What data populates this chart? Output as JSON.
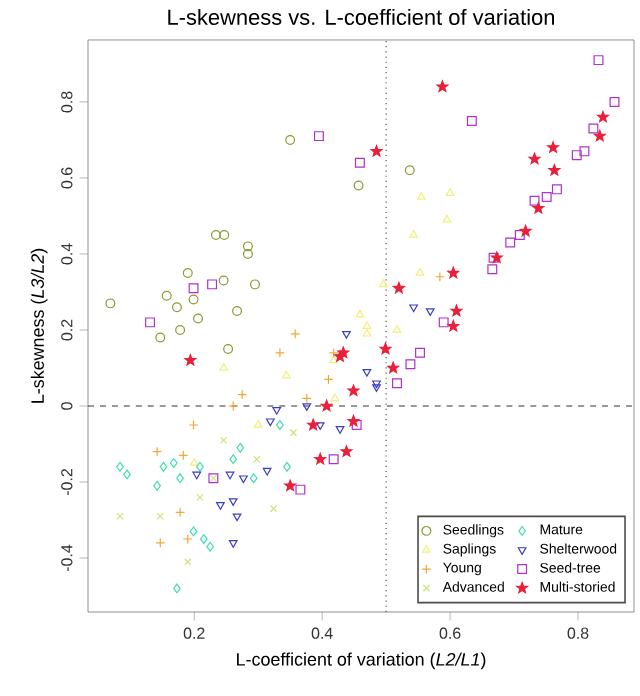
{
  "chart_data": {
    "type": "scatter",
    "title": "L-skewness vs. L-coefficient of variation",
    "xlabel": "L-coefficient of variation (*L2/L1*)",
    "ylabel": "L-skewness (*L3/L2*)",
    "xlim": [
      0.034,
      0.8875
    ],
    "ylim": [
      -0.542,
      0.963
    ],
    "xticks": [
      0.2,
      0.4,
      0.6,
      0.8
    ],
    "yticks": [
      -0.4,
      -0.2,
      0,
      0.2,
      0.4,
      0.6,
      0.8
    ],
    "grid": false,
    "legend": "bottom right",
    "ref_lines": [
      {
        "axis": "x",
        "value": 0.5,
        "line_style": "dotted",
        "color": "#555555"
      },
      {
        "axis": "y",
        "value": 0,
        "line_style": "dashed",
        "color": "#333333"
      }
    ],
    "series": [
      {
        "name": "Seedlings",
        "color": "#8c9a30",
        "marker": "circle",
        "x": [
          0.234,
          0.247,
          0.284,
          0.284,
          0.069,
          0.19,
          0.157,
          0.173,
          0.199,
          0.206,
          0.147,
          0.178,
          0.246,
          0.295,
          0.267,
          0.253,
          0.35,
          0.457,
          0.537
        ],
        "values": [
          0.45,
          0.45,
          0.42,
          0.4,
          0.27,
          0.35,
          0.29,
          0.26,
          0.28,
          0.23,
          0.18,
          0.2,
          0.33,
          0.32,
          0.25,
          0.15,
          0.7,
          0.58,
          0.62
        ]
      },
      {
        "name": "Saplings",
        "color": "#f0f07a",
        "marker": "triangle",
        "x": [
          0.555,
          0.6,
          0.543,
          0.595,
          0.553,
          0.496,
          0.459,
          0.47,
          0.517,
          0.418,
          0.47,
          0.344,
          0.246,
          0.2,
          0.3,
          0.42
        ],
        "values": [
          0.55,
          0.56,
          0.45,
          0.49,
          0.35,
          0.32,
          0.24,
          0.21,
          0.2,
          0.12,
          0.19,
          0.08,
          0.1,
          -0.15,
          -0.05,
          0.02
        ]
      },
      {
        "name": "Young",
        "color": "#f0a838",
        "marker": "plus",
        "x": [
          0.358,
          0.334,
          0.275,
          0.199,
          0.41,
          0.376,
          0.142,
          0.183,
          0.147,
          0.19,
          0.178,
          0.261,
          0.584,
          0.418
        ],
        "values": [
          0.19,
          0.14,
          0.03,
          -0.05,
          0.07,
          0.02,
          -0.12,
          -0.13,
          -0.36,
          -0.35,
          -0.28,
          0.0,
          0.34,
          0.14
        ]
      },
      {
        "name": "Advanced",
        "color": "#c8e67a",
        "marker": "cross",
        "x": [
          0.084,
          0.147,
          0.19,
          0.209,
          0.324,
          0.298,
          0.246,
          0.355,
          0.23
        ],
        "values": [
          -0.29,
          -0.29,
          -0.41,
          -0.24,
          -0.27,
          -0.14,
          -0.09,
          -0.07,
          -0.19
        ]
      },
      {
        "name": "Mature",
        "color": "#40deb0",
        "marker": "diamond",
        "x": [
          0.084,
          0.095,
          0.142,
          0.152,
          0.168,
          0.178,
          0.199,
          0.215,
          0.225,
          0.173,
          0.272,
          0.293,
          0.345,
          0.334,
          0.209,
          0.261
        ],
        "values": [
          -0.16,
          -0.18,
          -0.21,
          -0.16,
          -0.15,
          -0.19,
          -0.33,
          -0.35,
          -0.37,
          -0.48,
          -0.11,
          -0.19,
          -0.16,
          -0.05,
          -0.16,
          -0.14
        ]
      },
      {
        "name": "Shelterwood",
        "color": "#3c3cc8",
        "marker": "triangle_down",
        "x": [
          0.329,
          0.319,
          0.376,
          0.204,
          0.256,
          0.277,
          0.314,
          0.261,
          0.241,
          0.267,
          0.261,
          0.397,
          0.428,
          0.438,
          0.47,
          0.485,
          0.543,
          0.569,
          0.485
        ],
        "values": [
          -0.01,
          -0.04,
          0.0,
          -0.18,
          -0.18,
          -0.19,
          -0.17,
          -0.25,
          -0.26,
          -0.29,
          -0.36,
          -0.05,
          -0.06,
          0.19,
          0.09,
          0.06,
          0.26,
          0.25,
          0.05
        ]
      },
      {
        "name": "Seed-tree",
        "color": "#b030d0",
        "marker": "square",
        "x": [
          0.395,
          0.459,
          0.634,
          0.832,
          0.857,
          0.824,
          0.798,
          0.81,
          0.732,
          0.751,
          0.767,
          0.709,
          0.694,
          0.668,
          0.666,
          0.59,
          0.553,
          0.538,
          0.517,
          0.199,
          0.228,
          0.131,
          0.454,
          0.23,
          0.366,
          0.418
        ],
        "values": [
          0.71,
          0.64,
          0.75,
          0.91,
          0.8,
          0.73,
          0.66,
          0.67,
          0.54,
          0.55,
          0.57,
          0.45,
          0.43,
          0.39,
          0.36,
          0.22,
          0.14,
          0.11,
          0.06,
          0.31,
          0.32,
          0.22,
          -0.05,
          -0.19,
          -0.22,
          -0.14
        ]
      },
      {
        "name": "Multi-storied",
        "color": "#e8203a",
        "marker": "star",
        "x": [
          0.588,
          0.485,
          0.839,
          0.834,
          0.761,
          0.732,
          0.763,
          0.738,
          0.718,
          0.673,
          0.605,
          0.52,
          0.61,
          0.605,
          0.499,
          0.511,
          0.433,
          0.449,
          0.449,
          0.194,
          0.428,
          0.386,
          0.438,
          0.35,
          0.397,
          0.407
        ],
        "values": [
          0.84,
          0.67,
          0.76,
          0.71,
          0.68,
          0.65,
          0.62,
          0.52,
          0.46,
          0.39,
          0.35,
          0.31,
          0.25,
          0.21,
          0.15,
          0.1,
          0.14,
          0.04,
          -0.04,
          0.12,
          0.13,
          -0.05,
          -0.12,
          -0.21,
          -0.14,
          0.0
        ]
      }
    ]
  }
}
